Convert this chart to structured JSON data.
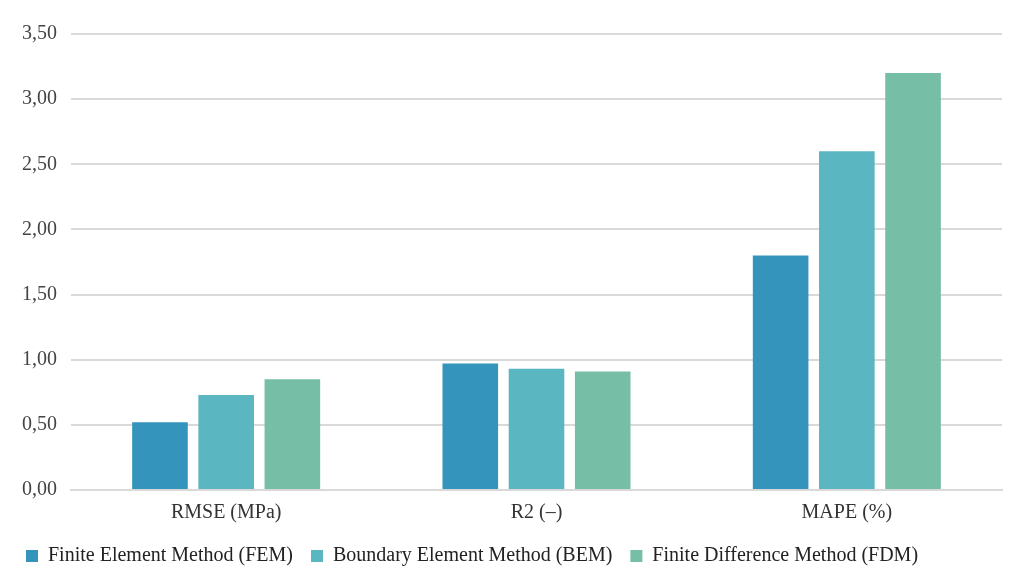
{
  "chart_data": {
    "type": "bar",
    "categories": [
      "RMSE (MPa)",
      "R2 (–)",
      "MAPE (%)"
    ],
    "series": [
      {
        "name": "Finite Element Method (FEM)",
        "color": "#3594bb",
        "values": [
          0.52,
          0.97,
          1.8
        ]
      },
      {
        "name": "Boundary Element Method (BEM)",
        "color": "#5ab6c0",
        "values": [
          0.73,
          0.93,
          2.6
        ]
      },
      {
        "name": "Finite Difference Method (FDM)",
        "color": "#76bea6",
        "values": [
          0.85,
          0.91,
          3.2
        ]
      }
    ],
    "ylim": [
      0,
      3.5
    ],
    "yticks": [
      {
        "value": 0,
        "label": "0,00"
      },
      {
        "value": 0.5,
        "label": "0,50"
      },
      {
        "value": 1,
        "label": "1,00"
      },
      {
        "value": 1.5,
        "label": "1,50"
      },
      {
        "value": 2,
        "label": "2,00"
      },
      {
        "value": 2.5,
        "label": "2,50"
      },
      {
        "value": 3,
        "label": "3,00"
      },
      {
        "value": 3.5,
        "label": "3,50"
      }
    ],
    "grid": "y",
    "legend": "bottom"
  }
}
